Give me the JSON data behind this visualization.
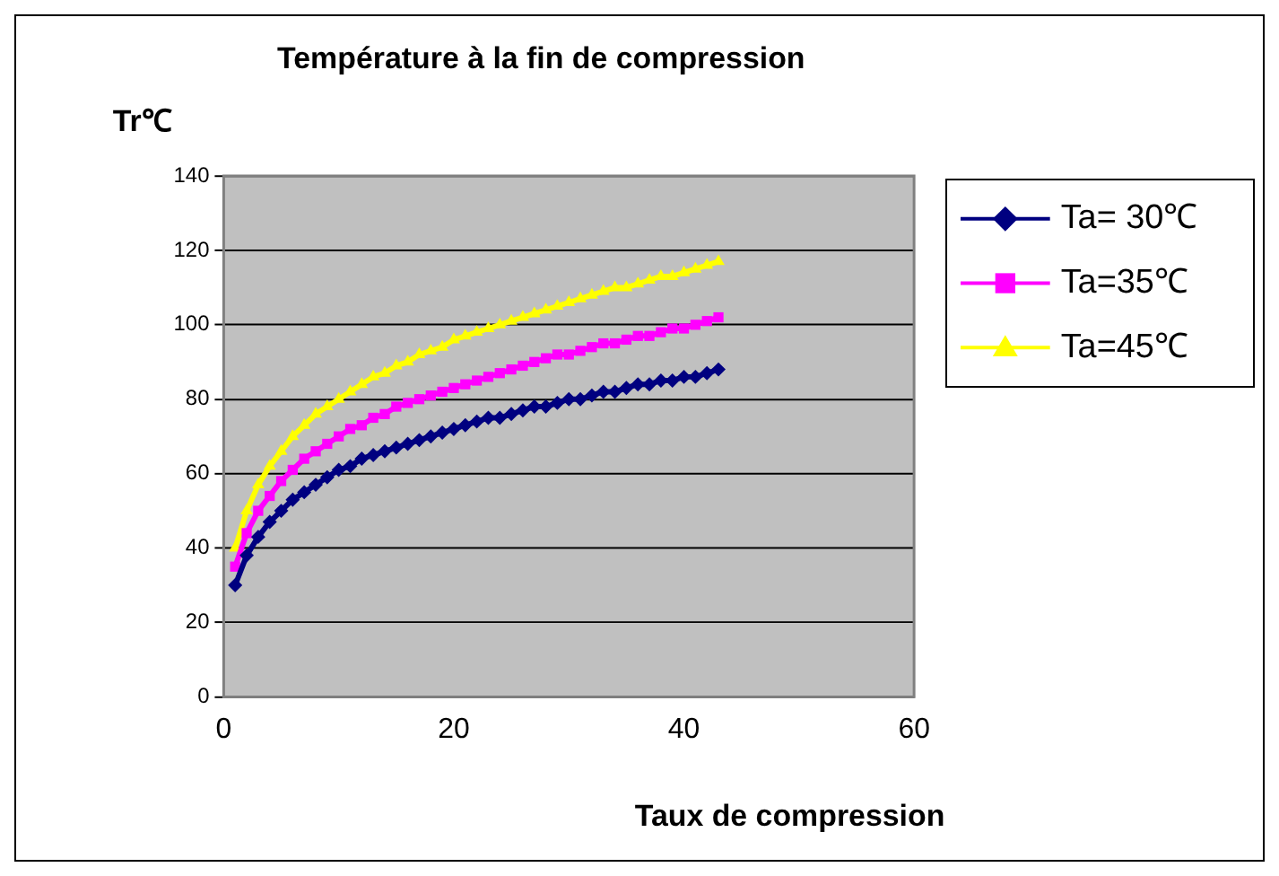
{
  "chart_data": {
    "type": "line",
    "title": "Température à la fin de compression",
    "xlabel": "Taux de compression",
    "ylabel": "Tr℃",
    "x": [
      1,
      2,
      3,
      4,
      5,
      6,
      7,
      8,
      9,
      10,
      11,
      12,
      13,
      14,
      15,
      16,
      17,
      18,
      19,
      20,
      21,
      22,
      23,
      24,
      25,
      26,
      27,
      28,
      29,
      30,
      31,
      32,
      33,
      34,
      35,
      36,
      37,
      38,
      39,
      40,
      41,
      42,
      43
    ],
    "series": [
      {
        "name": "Ta= 30℃",
        "color": "#000080",
        "marker": "diamond",
        "values": [
          30,
          38,
          43,
          47,
          50,
          53,
          55,
          57,
          59,
          61,
          62,
          64,
          65,
          66,
          67,
          68,
          69,
          70,
          71,
          72,
          73,
          74,
          75,
          75,
          76,
          77,
          78,
          78,
          79,
          80,
          80,
          81,
          82,
          82,
          83,
          84,
          84,
          85,
          85,
          86,
          86,
          87,
          88
        ]
      },
      {
        "name": "Ta=35℃",
        "color": "#ff00ff",
        "marker": "square",
        "values": [
          35,
          44,
          50,
          54,
          58,
          61,
          64,
          66,
          68,
          70,
          72,
          73,
          75,
          76,
          78,
          79,
          80,
          81,
          82,
          83,
          84,
          85,
          86,
          87,
          88,
          89,
          90,
          91,
          92,
          92,
          93,
          94,
          95,
          95,
          96,
          97,
          97,
          98,
          99,
          99,
          100,
          101,
          102
        ]
      },
      {
        "name": "Ta=45℃",
        "color": "#ffff00",
        "marker": "triangle",
        "values": [
          40,
          50,
          57,
          62,
          66,
          70,
          73,
          76,
          78,
          80,
          82,
          84,
          86,
          87,
          89,
          90,
          92,
          93,
          94,
          96,
          97,
          98,
          99,
          100,
          101,
          102,
          103,
          104,
          105,
          106,
          107,
          108,
          109,
          110,
          110,
          111,
          112,
          113,
          113,
          114,
          115,
          116,
          117
        ]
      }
    ],
    "xlim": [
      0,
      60
    ],
    "xticks": [
      0,
      20,
      40,
      60
    ],
    "ylim": [
      0,
      140
    ],
    "yticks": [
      0,
      20,
      40,
      60,
      80,
      100,
      120,
      140
    ],
    "grid": "y",
    "legend": "right",
    "line_style": "solid"
  }
}
